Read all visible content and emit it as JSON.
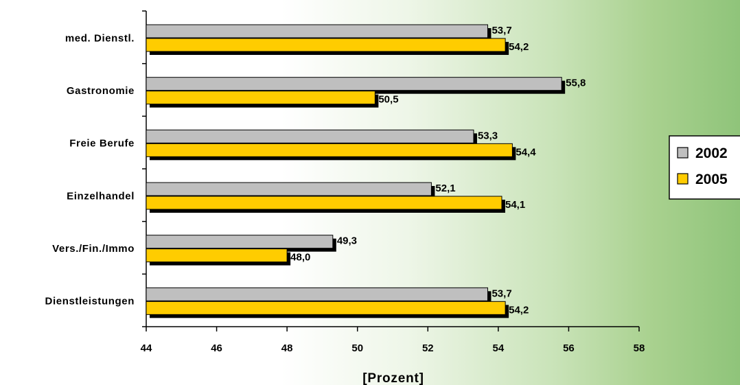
{
  "chart_data": {
    "type": "bar",
    "orientation": "horizontal",
    "categories": [
      "med. Dienstl.",
      "Gastronomie",
      "Freie Berufe",
      "Einzelhandel",
      "Vers./Fin./Immo",
      "Dienstleistungen"
    ],
    "series": [
      {
        "name": "2002",
        "color": "#bfbfbf",
        "values": [
          53.7,
          55.8,
          53.3,
          52.1,
          49.3,
          53.7
        ],
        "labels": [
          "53,7",
          "55,8",
          "53,3",
          "52,1",
          "49,3",
          "53,7"
        ]
      },
      {
        "name": "2005",
        "color": "#ffcc00",
        "values": [
          54.2,
          50.5,
          54.4,
          54.1,
          48.0,
          54.2
        ],
        "labels": [
          "54,2",
          "50,5",
          "54,4",
          "54,1",
          "48,0",
          "54,2"
        ]
      }
    ],
    "xlim": [
      44,
      58
    ],
    "xticks": [
      "44",
      "46",
      "48",
      "50",
      "52",
      "54",
      "56",
      "58"
    ],
    "xlabel": "[Prozent]",
    "legend_position": "right"
  }
}
